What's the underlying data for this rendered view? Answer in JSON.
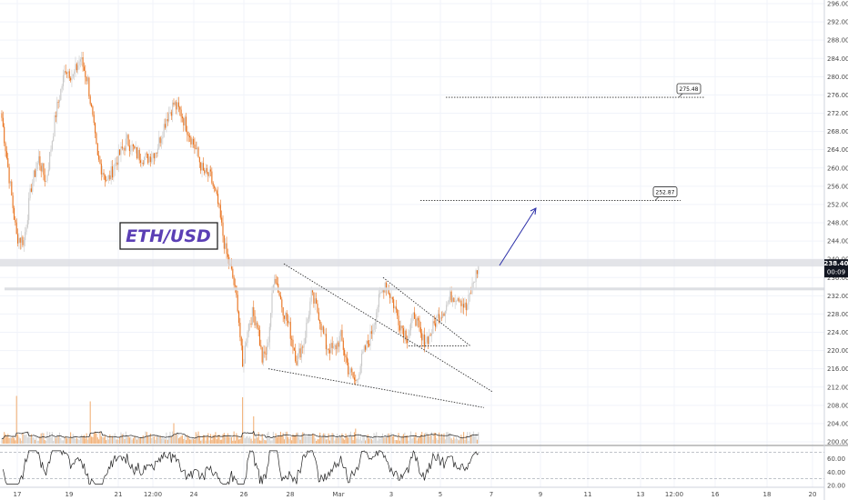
{
  "symbol_label": "ETH/USD",
  "colors": {
    "up": "#c8c8c8",
    "down": "#e8701a",
    "grid": "#f0f3fa",
    "accent": "#5b3fb5",
    "price_tag": "#131722"
  },
  "chart_data": {
    "type": "candlestick",
    "title": "",
    "ylim": [
      200,
      296
    ],
    "y_ticks": [
      "296.00",
      "292.00",
      "288.00",
      "284.00",
      "280.00",
      "276.00",
      "272.00",
      "268.00",
      "264.00",
      "260.00",
      "256.00",
      "252.00",
      "248.00",
      "244.00",
      "240.00",
      "236.00",
      "232.00",
      "228.00",
      "224.00",
      "220.00",
      "216.00",
      "212.00",
      "208.00",
      "204.00",
      "200.00"
    ],
    "x_ticks": [
      "17",
      "19",
      "21",
      "12:00",
      "24",
      "26",
      "28",
      "Mar",
      "3",
      "5",
      "7",
      "9",
      "11",
      "13",
      "12:00",
      "16",
      "18",
      "20"
    ],
    "grid": true,
    "price_tag": {
      "price": "238.40",
      "countdown": "00:09"
    },
    "targets": [
      {
        "label": "275.48",
        "price": 275.48
      },
      {
        "label": "252.87",
        "price": 252.87
      }
    ],
    "anchors": [
      {
        "t": 0,
        "p": 271
      },
      {
        "t": 6,
        "p": 258
      },
      {
        "t": 12,
        "p": 245
      },
      {
        "t": 18,
        "p": 244
      },
      {
        "t": 24,
        "p": 256
      },
      {
        "t": 30,
        "p": 262
      },
      {
        "t": 36,
        "p": 257
      },
      {
        "t": 44,
        "p": 272
      },
      {
        "t": 52,
        "p": 282
      },
      {
        "t": 58,
        "p": 280
      },
      {
        "t": 64,
        "p": 284
      },
      {
        "t": 70,
        "p": 279
      },
      {
        "t": 78,
        "p": 262
      },
      {
        "t": 86,
        "p": 257
      },
      {
        "t": 94,
        "p": 262
      },
      {
        "t": 102,
        "p": 266
      },
      {
        "t": 110,
        "p": 263
      },
      {
        "t": 118,
        "p": 262
      },
      {
        "t": 126,
        "p": 264
      },
      {
        "t": 134,
        "p": 271
      },
      {
        "t": 140,
        "p": 274
      },
      {
        "t": 146,
        "p": 272
      },
      {
        "t": 152,
        "p": 268
      },
      {
        "t": 158,
        "p": 264
      },
      {
        "t": 164,
        "p": 259
      },
      {
        "t": 170,
        "p": 258
      },
      {
        "t": 176,
        "p": 252
      },
      {
        "t": 182,
        "p": 242
      },
      {
        "t": 188,
        "p": 236
      },
      {
        "t": 192,
        "p": 230
      },
      {
        "t": 196,
        "p": 216
      },
      {
        "t": 200,
        "p": 225
      },
      {
        "t": 204,
        "p": 228
      },
      {
        "t": 208,
        "p": 226
      },
      {
        "t": 212,
        "p": 218
      },
      {
        "t": 216,
        "p": 220
      },
      {
        "t": 222,
        "p": 237
      },
      {
        "t": 228,
        "p": 230
      },
      {
        "t": 234,
        "p": 225
      },
      {
        "t": 240,
        "p": 218
      },
      {
        "t": 246,
        "p": 222
      },
      {
        "t": 252,
        "p": 232
      },
      {
        "t": 258,
        "p": 228
      },
      {
        "t": 264,
        "p": 221
      },
      {
        "t": 270,
        "p": 220
      },
      {
        "t": 276,
        "p": 223
      },
      {
        "t": 282,
        "p": 216
      },
      {
        "t": 288,
        "p": 213
      },
      {
        "t": 294,
        "p": 219
      },
      {
        "t": 300,
        "p": 223
      },
      {
        "t": 306,
        "p": 230
      },
      {
        "t": 312,
        "p": 235
      },
      {
        "t": 318,
        "p": 231
      },
      {
        "t": 324,
        "p": 226
      },
      {
        "t": 330,
        "p": 223
      },
      {
        "t": 336,
        "p": 228
      },
      {
        "t": 342,
        "p": 222
      },
      {
        "t": 348,
        "p": 223
      },
      {
        "t": 354,
        "p": 227
      },
      {
        "t": 360,
        "p": 229
      },
      {
        "t": 366,
        "p": 232
      },
      {
        "t": 372,
        "p": 232
      },
      {
        "t": 378,
        "p": 229
      },
      {
        "t": 384,
        "p": 235
      },
      {
        "t": 388,
        "p": 238.4
      }
    ],
    "volume_scale": 60,
    "volume_spikes": [
      {
        "t": 12,
        "v": 70
      },
      {
        "t": 72,
        "v": 62
      },
      {
        "t": 140,
        "v": 30
      },
      {
        "t": 196,
        "v": 68
      },
      {
        "t": 205,
        "v": 40
      },
      {
        "t": 288,
        "v": 22
      }
    ],
    "oscillator": {
      "ticks": [
        "60.00",
        "40.00",
        "20.00"
      ],
      "upper": 70,
      "lower": 30,
      "range": [
        20,
        80
      ]
    }
  }
}
